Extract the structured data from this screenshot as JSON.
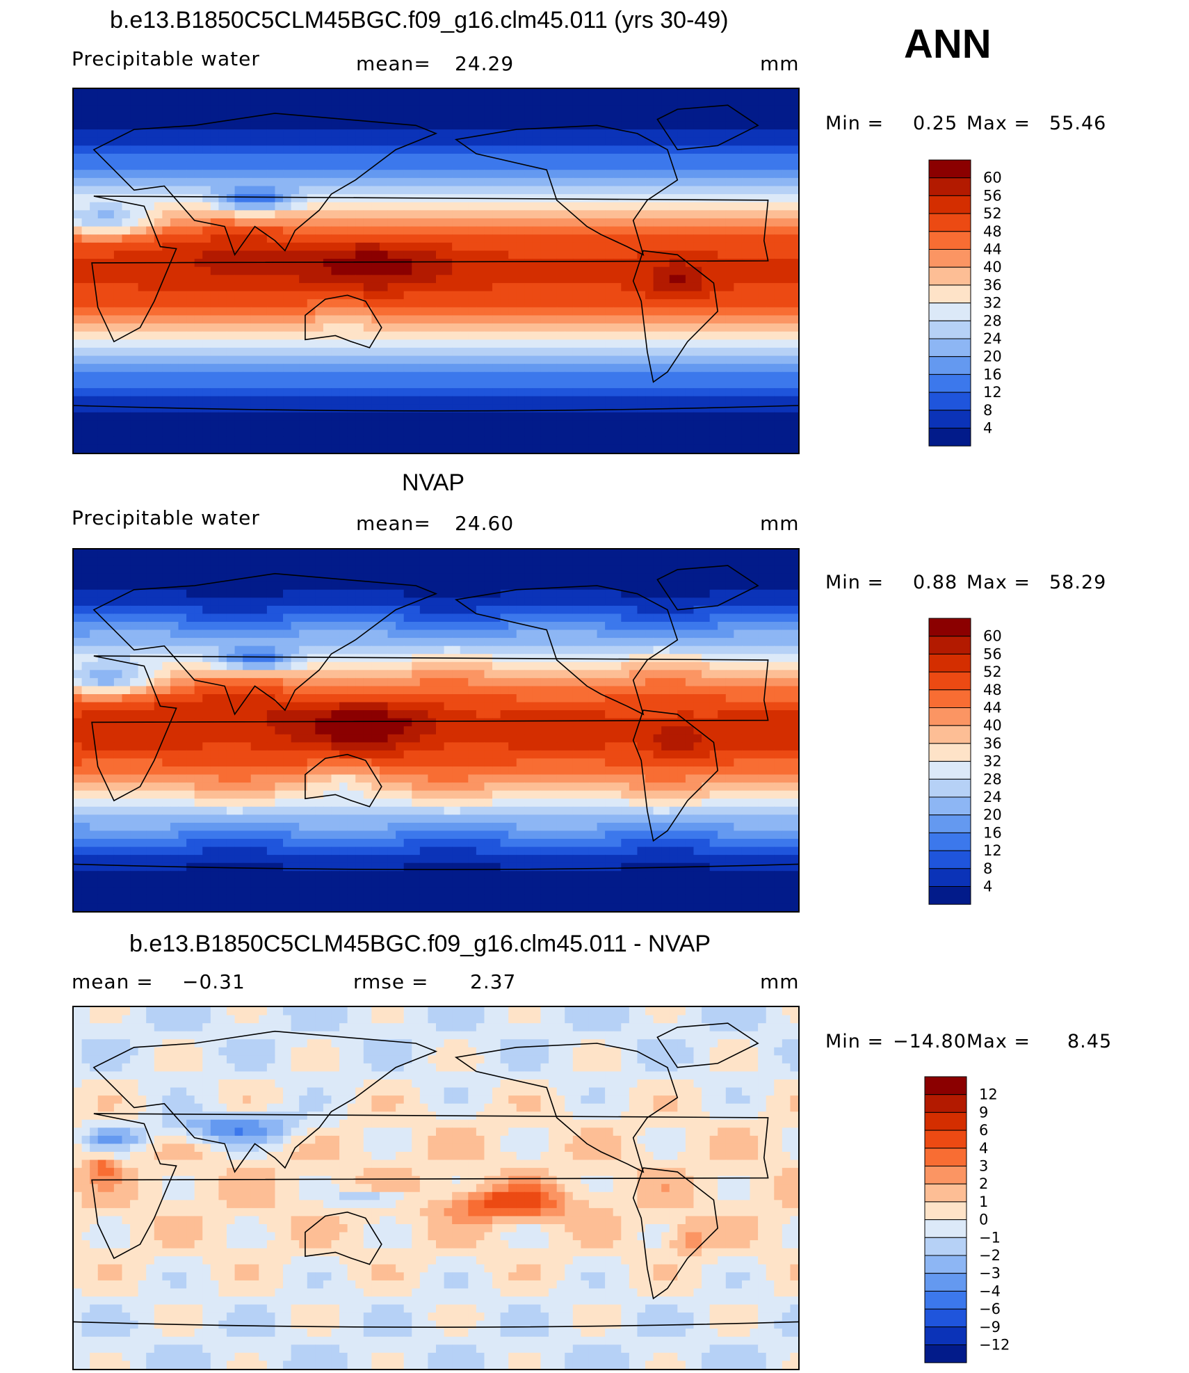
{
  "season": "ANN",
  "units": "mm",
  "panels": [
    {
      "title": "b.e13.B1850C5CLM45BGC.f09_g16.clm45.011 (yrs 30-49)",
      "left_label": "Precipitable  water",
      "mid_label": "mean=",
      "mid_value": "24.29",
      "units": "mm",
      "min_label": "Min  =",
      "min_value": "0.25",
      "max_label": "Max  =",
      "max_value": "55.46"
    },
    {
      "title": "NVAP",
      "left_label": "Precipitable  water",
      "mid_label": "mean=",
      "mid_value": "24.60",
      "units": "mm",
      "min_label": "Min  =",
      "min_value": "0.88",
      "max_label": "Max  =",
      "max_value": "58.29"
    },
    {
      "title": "b.e13.B1850C5CLM45BGC.f09_g16.clm45.011 - NVAP",
      "left_label": "mean  =",
      "left_value": "−0.31",
      "mid_label": "rmse  =",
      "mid_value": "2.37",
      "units": "mm",
      "min_label": "Min  =",
      "min_value": "−14.80",
      "max_label": "Max  =",
      "max_value": "8.45"
    }
  ],
  "chart_data": [
    {
      "type": "heatmap",
      "variable": "Precipitable water",
      "colorbar_levels": [
        60,
        56,
        52,
        48,
        44,
        40,
        36,
        32,
        28,
        24,
        20,
        16,
        12,
        8,
        4
      ],
      "colors": [
        "#8b0000",
        "#b31a00",
        "#d42e00",
        "#ec4a13",
        "#f86d33",
        "#fb9563",
        "#fdbe95",
        "#fee3c8",
        "#dce9f8",
        "#b6d1f6",
        "#8db6f4",
        "#6499f0",
        "#3c78ec",
        "#1f55dc",
        "#0b33b8",
        "#021b8a"
      ],
      "mean": 24.29,
      "min": 0.25,
      "max": 55.46
    },
    {
      "type": "heatmap",
      "variable": "Precipitable water",
      "colorbar_levels": [
        60,
        56,
        52,
        48,
        44,
        40,
        36,
        32,
        28,
        24,
        20,
        16,
        12,
        8,
        4
      ],
      "colors": [
        "#8b0000",
        "#b31a00",
        "#d42e00",
        "#ec4a13",
        "#f86d33",
        "#fb9563",
        "#fdbe95",
        "#fee3c8",
        "#dce9f8",
        "#b6d1f6",
        "#8db6f4",
        "#6499f0",
        "#3c78ec",
        "#1f55dc",
        "#0b33b8",
        "#021b8a"
      ],
      "mean": 24.6,
      "min": 0.88,
      "max": 58.29
    },
    {
      "type": "heatmap",
      "variable": "difference",
      "colorbar_levels": [
        "12",
        "9",
        "6",
        "4",
        "3",
        "2",
        "1",
        "0",
        "−1",
        "−2",
        "−3",
        "−4",
        "−6",
        "−9",
        "−12"
      ],
      "colors": [
        "#8b0000",
        "#b31a00",
        "#d42e00",
        "#ec4a13",
        "#f86d33",
        "#fb9563",
        "#fdbe95",
        "#fee3c8",
        "#dce9f8",
        "#b6d1f6",
        "#8db6f4",
        "#6499f0",
        "#3c78ec",
        "#1f55dc",
        "#0b33b8",
        "#021b8a"
      ],
      "mean": -0.31,
      "rmse": 2.37,
      "min": -14.8,
      "max": 8.45
    }
  ]
}
